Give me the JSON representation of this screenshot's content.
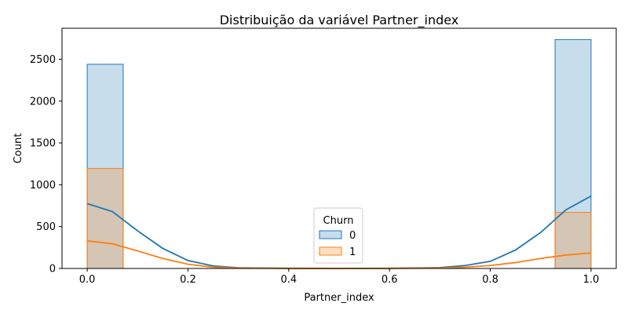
{
  "chart_data": {
    "type": "bar",
    "title": "Distribuição da variável Partner_index",
    "xlabel": "Partner_index",
    "ylabel": "Count",
    "xlim": [
      -0.05,
      1.05
    ],
    "ylim": [
      0,
      2870
    ],
    "xticks": [
      0.0,
      0.2,
      0.4,
      0.6,
      0.8,
      1.0
    ],
    "xtick_labels": [
      "0.0",
      "0.2",
      "0.4",
      "0.6",
      "0.8",
      "1.0"
    ],
    "yticks": [
      0,
      500,
      1000,
      1500,
      2000,
      2500
    ],
    "ytick_labels": [
      "0",
      "500",
      "1000",
      "1500",
      "2000",
      "2500"
    ],
    "grid": false,
    "legend": {
      "title": "Churn",
      "placement": "bottom-center"
    },
    "series": [
      {
        "name": "0",
        "color": "#1f77b4",
        "bins": [
          {
            "x0": 0.0,
            "x1": 0.0714,
            "count": 2440
          },
          {
            "x0": 0.9286,
            "x1": 1.0,
            "count": 2735
          }
        ],
        "kde": [
          [
            0.0,
            775
          ],
          [
            0.05,
            680
          ],
          [
            0.1,
            450
          ],
          [
            0.15,
            240
          ],
          [
            0.2,
            95
          ],
          [
            0.25,
            30
          ],
          [
            0.3,
            8
          ],
          [
            0.4,
            2
          ],
          [
            0.5,
            1
          ],
          [
            0.6,
            2
          ],
          [
            0.7,
            10
          ],
          [
            0.75,
            35
          ],
          [
            0.8,
            85
          ],
          [
            0.85,
            220
          ],
          [
            0.9,
            430
          ],
          [
            0.95,
            700
          ],
          [
            1.0,
            865
          ]
        ]
      },
      {
        "name": "1",
        "color": "#ff7f0e",
        "bins": [
          {
            "x0": 0.0,
            "x1": 0.0714,
            "count": 1195
          },
          {
            "x0": 0.9286,
            "x1": 1.0,
            "count": 670
          }
        ],
        "kde": [
          [
            0.0,
            330
          ],
          [
            0.05,
            295
          ],
          [
            0.1,
            210
          ],
          [
            0.15,
            120
          ],
          [
            0.2,
            50
          ],
          [
            0.25,
            15
          ],
          [
            0.3,
            4
          ],
          [
            0.4,
            1
          ],
          [
            0.5,
            0
          ],
          [
            0.6,
            1
          ],
          [
            0.7,
            6
          ],
          [
            0.75,
            15
          ],
          [
            0.8,
            35
          ],
          [
            0.85,
            70
          ],
          [
            0.9,
            120
          ],
          [
            0.95,
            160
          ],
          [
            1.0,
            185
          ]
        ]
      }
    ]
  }
}
